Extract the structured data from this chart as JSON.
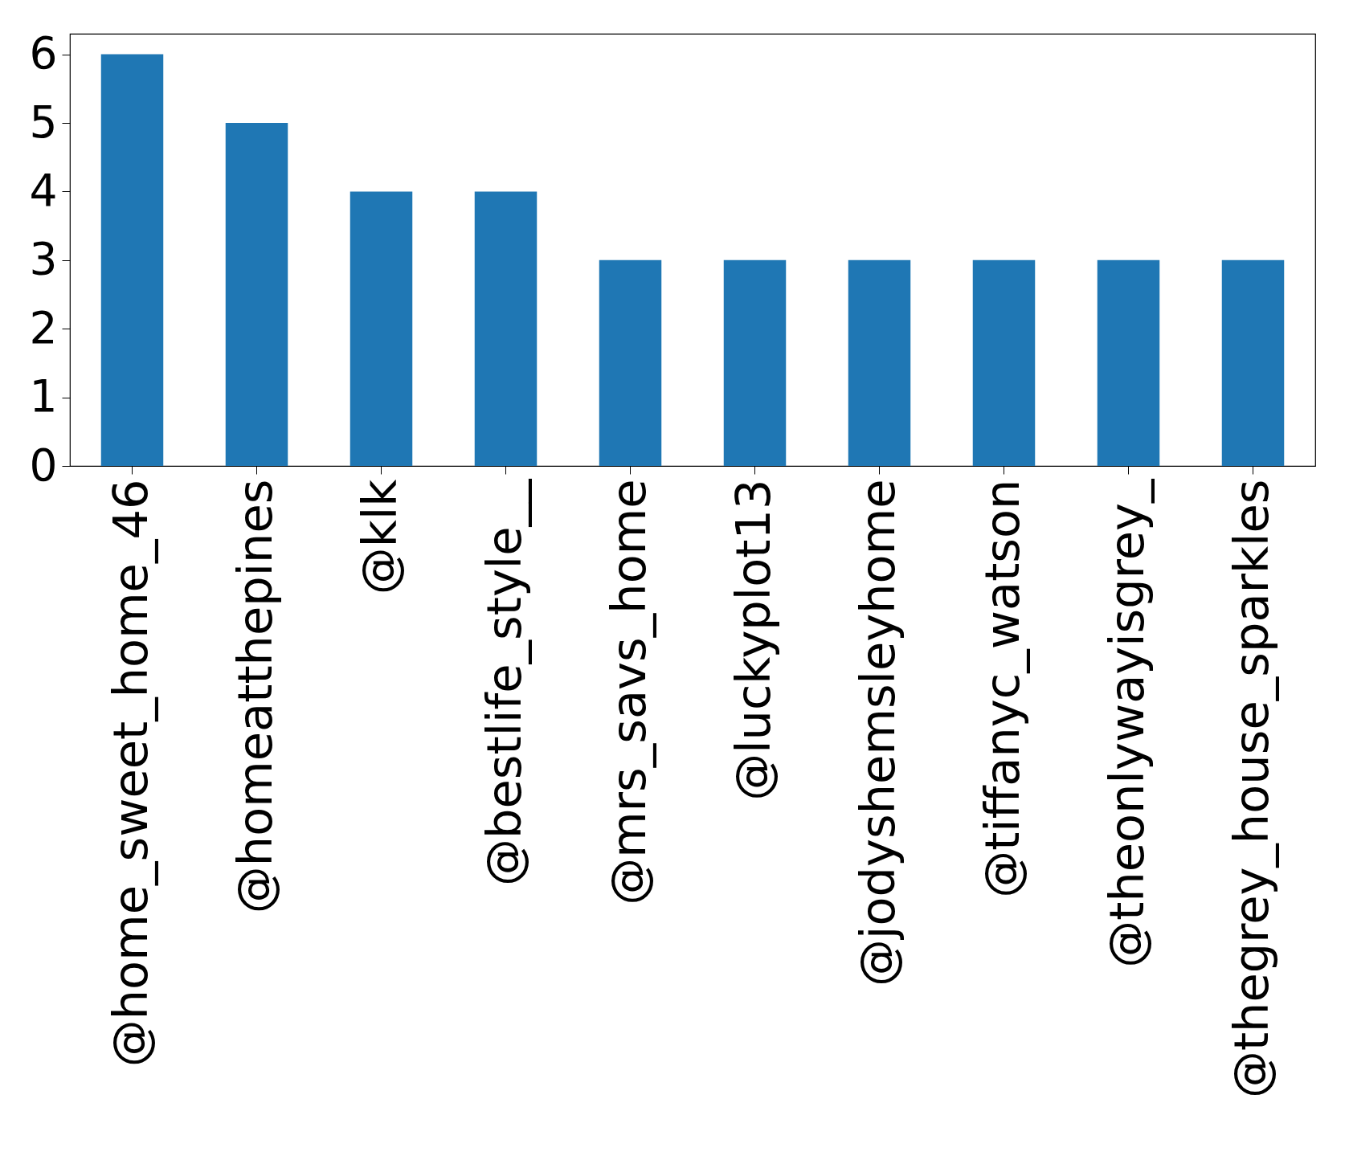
{
  "chart_data": {
    "type": "bar",
    "categories": [
      "@home_sweet_home_46",
      "@homeatthepines",
      "@klk",
      "@bestlife_style__",
      "@mrs_savs_home",
      "@luckyplot13",
      "@jodyshemsleyhome",
      "@tiffanyc_watson",
      "@theonlywayisgrey_",
      "@thegrey_house_sparkles"
    ],
    "values": [
      6,
      5,
      4,
      4,
      3,
      3,
      3,
      3,
      3,
      3
    ],
    "color": "#1f77b4",
    "ylim": [
      0,
      6.3
    ],
    "yticks": [
      0,
      1,
      2,
      3,
      4,
      5,
      6
    ],
    "grid": false
  }
}
